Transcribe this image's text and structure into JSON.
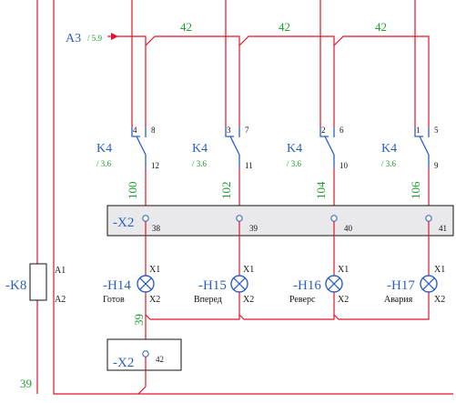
{
  "colors": {
    "wire": "#e0142a",
    "designation": "#2d5fbf",
    "wire_number": "#1e9b2e",
    "pin_text": "#111111",
    "strip_fill": "#e9e9ec"
  },
  "icons": {
    "lamp": "circle-with-cross",
    "relay_coil": "rectangle",
    "arrow": "filled-triangle"
  },
  "reference": {
    "label": "A3",
    "page_ref": "/ 5.9"
  },
  "top_wire_numbers": [
    "42",
    "42",
    "42"
  ],
  "contacts": [
    {
      "id": "K4",
      "ref": "/ 3.6",
      "pin_a": "4",
      "pin_b": "8",
      "pin_out": "12",
      "wire": "100"
    },
    {
      "id": "K4",
      "ref": "/ 3.6",
      "pin_a": "3",
      "pin_b": "7",
      "pin_out": "11",
      "wire": "102"
    },
    {
      "id": "K4",
      "ref": "/ 3.6",
      "pin_a": "2",
      "pin_b": "6",
      "pin_out": "10",
      "wire": "104"
    },
    {
      "id": "K4",
      "ref": "/ 3.6",
      "pin_a": "1",
      "pin_b": "5",
      "pin_out": "9",
      "wire": "106"
    }
  ],
  "terminal_strip": {
    "label": "-X2",
    "terminals": [
      "38",
      "39",
      "40",
      "41"
    ]
  },
  "lamps": [
    {
      "id": "-H14",
      "caption": "Готов",
      "x1": "X1",
      "x2": "X2"
    },
    {
      "id": "-H15",
      "caption": "Вперед",
      "x1": "X1",
      "x2": "X2"
    },
    {
      "id": "-H16",
      "caption": "Реверс",
      "x1": "X1",
      "x2": "X2"
    },
    {
      "id": "-H17",
      "caption": "Авария",
      "x1": "X1",
      "x2": "X2"
    }
  ],
  "relay": {
    "id": "-K8",
    "pin_top": "A1",
    "pin_bottom": "A2"
  },
  "return_wire_number": "39",
  "bottom_terminal": {
    "label": "-X2",
    "terminal": "42"
  },
  "bottom_wire_number": "39"
}
